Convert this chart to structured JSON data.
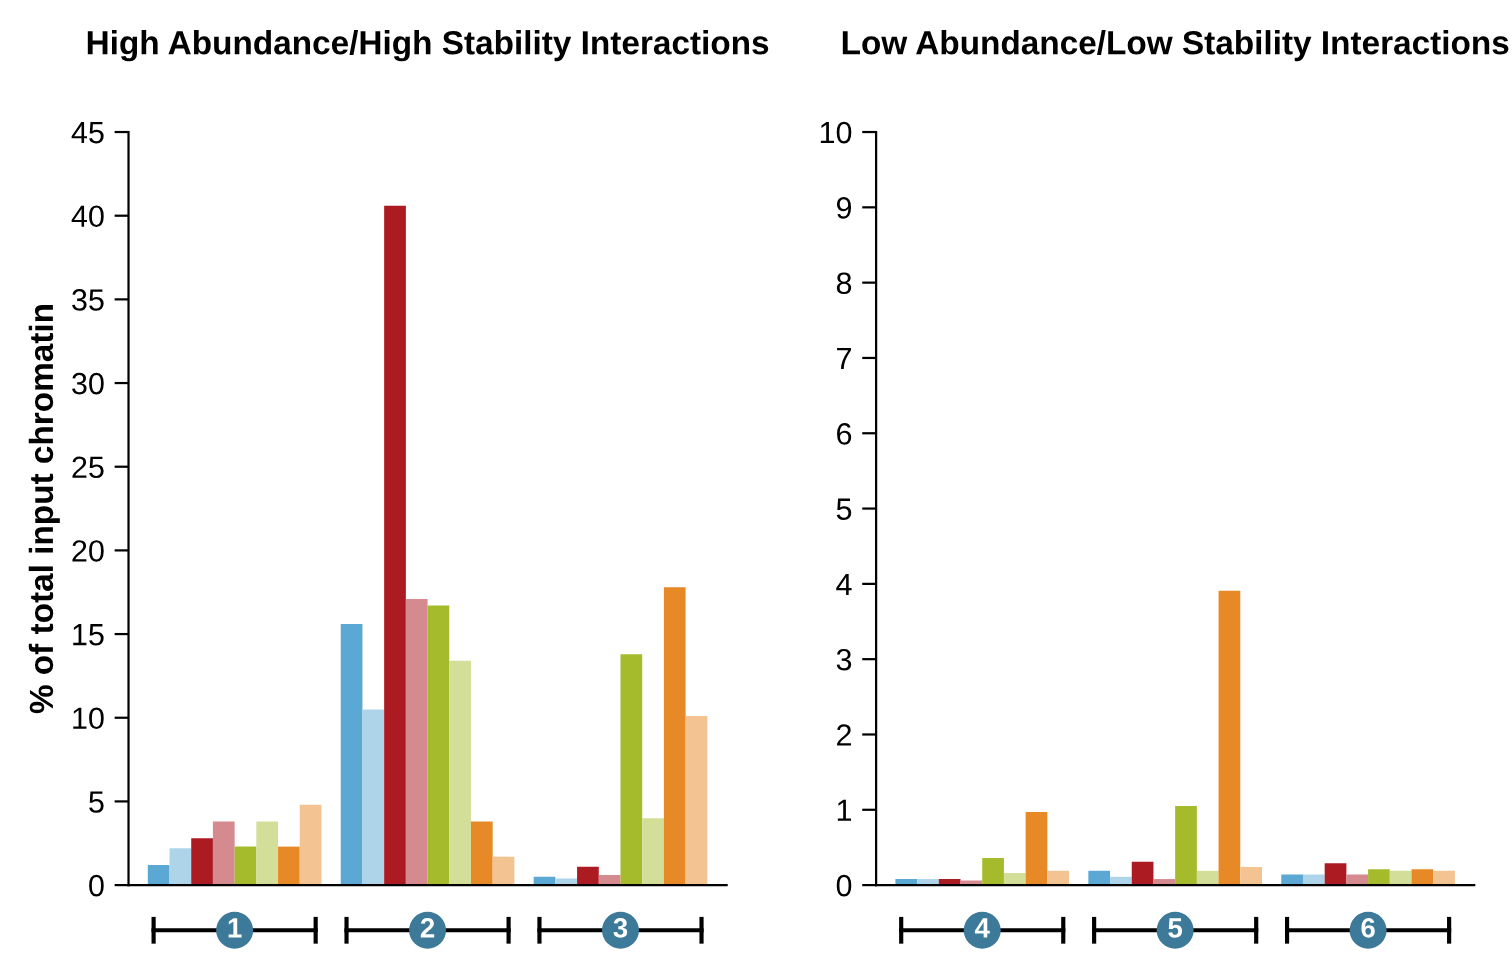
{
  "chart_data": [
    {
      "type": "bar",
      "title": "High Abundance/High Stability Interactions",
      "ylabel": "% of total input chromatin",
      "categories": [
        "1",
        "2",
        "3"
      ],
      "ylim": [
        0,
        45
      ],
      "yticks": [
        0,
        5,
        10,
        15,
        20,
        25,
        30,
        35,
        40,
        45
      ],
      "grid": false,
      "legend": false,
      "series": [
        {
          "color": "#5ba8d4",
          "values": [
            1.2,
            15.6,
            0.5
          ]
        },
        {
          "color": "#aed4ea",
          "values": [
            2.2,
            10.5,
            0.4
          ]
        },
        {
          "color": "#ac1a22",
          "values": [
            2.8,
            40.6,
            1.1
          ]
        },
        {
          "color": "#d48a8e",
          "values": [
            3.8,
            17.1,
            0.6
          ]
        },
        {
          "color": "#a5bb2b",
          "values": [
            2.3,
            16.7,
            13.8
          ]
        },
        {
          "color": "#d3de98",
          "values": [
            3.8,
            13.4,
            4.0
          ]
        },
        {
          "color": "#e88928",
          "values": [
            2.3,
            3.8,
            17.8
          ]
        },
        {
          "color": "#f3c492",
          "values": [
            4.8,
            1.7,
            10.1
          ]
        }
      ]
    },
    {
      "type": "bar",
      "title": "Low Abundance/Low Stability Interactions",
      "categories": [
        "4",
        "5",
        "6"
      ],
      "ylim": [
        0,
        10
      ],
      "yticks": [
        0,
        1,
        2,
        3,
        4,
        5,
        6,
        7,
        8,
        9,
        10
      ],
      "grid": false,
      "legend": false,
      "series": [
        {
          "color": "#5ba8d4",
          "values": [
            0.08,
            0.19,
            0.14
          ]
        },
        {
          "color": "#aed4ea",
          "values": [
            0.08,
            0.11,
            0.14
          ]
        },
        {
          "color": "#ac1a22",
          "values": [
            0.08,
            0.31,
            0.29
          ]
        },
        {
          "color": "#d48a8e",
          "values": [
            0.06,
            0.08,
            0.14
          ]
        },
        {
          "color": "#a5bb2b",
          "values": [
            0.36,
            1.05,
            0.21
          ]
        },
        {
          "color": "#d3de98",
          "values": [
            0.16,
            0.19,
            0.19
          ]
        },
        {
          "color": "#e88928",
          "values": [
            0.97,
            3.91,
            0.21
          ]
        },
        {
          "color": "#f3c492",
          "values": [
            0.19,
            0.24,
            0.19
          ]
        }
      ]
    }
  ]
}
